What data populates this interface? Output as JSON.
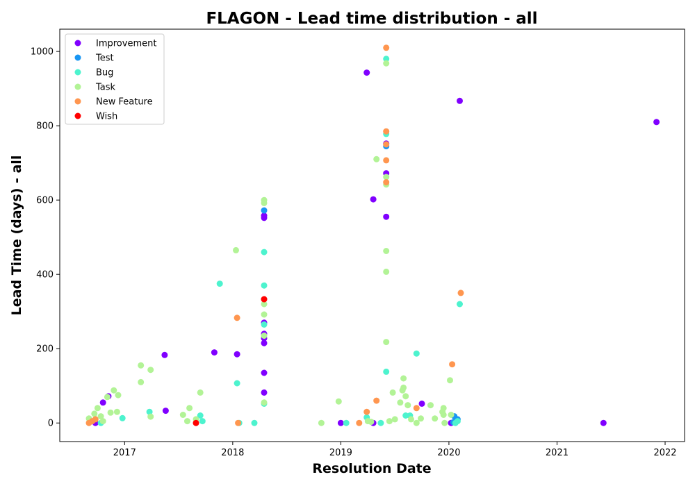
{
  "chart_data": {
    "type": "scatter",
    "title": "FLAGON - Lead time distribution - all",
    "xlabel": "Resolution Date",
    "ylabel": "Lead Time (days) - all",
    "xlim": [
      2016.4,
      2022.18
    ],
    "ylim": [
      -50,
      1060
    ],
    "x_ticks": [
      2017,
      2018,
      2019,
      2020,
      2021,
      2022
    ],
    "y_ticks": [
      0,
      200,
      400,
      600,
      800,
      1000
    ],
    "grid": false,
    "legend_position": "top-left",
    "series": [
      {
        "name": "Improvement",
        "color": "#8000ff",
        "points": [
          [
            2016.73,
            0
          ],
          [
            2016.8,
            55
          ],
          [
            2016.85,
            72
          ],
          [
            2017.37,
            183
          ],
          [
            2017.38,
            33
          ],
          [
            2017.83,
            190
          ],
          [
            2018.04,
            185
          ],
          [
            2018.29,
            552
          ],
          [
            2018.29,
            135
          ],
          [
            2018.29,
            215
          ],
          [
            2018.29,
            228
          ],
          [
            2018.29,
            240
          ],
          [
            2018.29,
            270
          ],
          [
            2018.29,
            82
          ],
          [
            2018.29,
            558
          ],
          [
            2019.0,
            0
          ],
          [
            2019.24,
            943
          ],
          [
            2019.3,
            0
          ],
          [
            2019.3,
            602
          ],
          [
            2019.42,
            555
          ],
          [
            2019.42,
            672
          ],
          [
            2019.42,
            752
          ],
          [
            2019.75,
            52
          ],
          [
            2020.1,
            867
          ],
          [
            2020.02,
            0
          ],
          [
            2021.43,
            0
          ],
          [
            2021.92,
            810
          ]
        ]
      },
      {
        "name": "Test",
        "color": "#1996f3",
        "points": [
          [
            2018.29,
            572
          ],
          [
            2019.42,
            745
          ],
          [
            2020.05,
            18
          ],
          [
            2020.08,
            10
          ],
          [
            2020.04,
            2
          ]
        ]
      },
      {
        "name": "Bug",
        "color": "#4df3ce",
        "points": [
          [
            2016.78,
            0
          ],
          [
            2016.98,
            13
          ],
          [
            2017.23,
            30
          ],
          [
            2017.7,
            20
          ],
          [
            2017.72,
            5
          ],
          [
            2017.88,
            375
          ],
          [
            2018.04,
            107
          ],
          [
            2018.06,
            0
          ],
          [
            2018.2,
            0
          ],
          [
            2018.29,
            460
          ],
          [
            2018.29,
            370
          ],
          [
            2018.29,
            265
          ],
          [
            2018.29,
            52
          ],
          [
            2019.05,
            0
          ],
          [
            2019.24,
            15
          ],
          [
            2019.37,
            0
          ],
          [
            2019.42,
            980
          ],
          [
            2019.42,
            778
          ],
          [
            2019.42,
            138
          ],
          [
            2019.6,
            20
          ],
          [
            2019.64,
            20
          ],
          [
            2019.7,
            187
          ],
          [
            2020.1,
            320
          ],
          [
            2020.08,
            5
          ],
          [
            2020.06,
            0
          ]
        ]
      },
      {
        "name": "Task",
        "color": "#b2f396",
        "points": [
          [
            2016.67,
            12
          ],
          [
            2016.72,
            25
          ],
          [
            2016.75,
            40
          ],
          [
            2016.78,
            18
          ],
          [
            2016.8,
            5
          ],
          [
            2016.84,
            70
          ],
          [
            2016.87,
            28
          ],
          [
            2016.9,
            88
          ],
          [
            2016.93,
            30
          ],
          [
            2016.94,
            75
          ],
          [
            2017.15,
            155
          ],
          [
            2017.15,
            110
          ],
          [
            2017.24,
            143
          ],
          [
            2017.24,
            17
          ],
          [
            2017.54,
            22
          ],
          [
            2017.58,
            5
          ],
          [
            2017.6,
            40
          ],
          [
            2017.66,
            10
          ],
          [
            2017.7,
            82
          ],
          [
            2018.03,
            465
          ],
          [
            2018.29,
            600
          ],
          [
            2018.29,
            592
          ],
          [
            2018.29,
            320
          ],
          [
            2018.29,
            292
          ],
          [
            2018.29,
            235
          ],
          [
            2018.29,
            55
          ],
          [
            2018.82,
            0
          ],
          [
            2018.98,
            58
          ],
          [
            2019.25,
            5
          ],
          [
            2019.28,
            3
          ],
          [
            2019.33,
            710
          ],
          [
            2019.42,
            968
          ],
          [
            2019.42,
            662
          ],
          [
            2019.42,
            642
          ],
          [
            2019.42,
            463
          ],
          [
            2019.42,
            407
          ],
          [
            2019.42,
            218
          ],
          [
            2019.45,
            5
          ],
          [
            2019.48,
            82
          ],
          [
            2019.5,
            10
          ],
          [
            2019.55,
            55
          ],
          [
            2019.57,
            88
          ],
          [
            2019.58,
            95
          ],
          [
            2019.58,
            120
          ],
          [
            2019.6,
            72
          ],
          [
            2019.62,
            48
          ],
          [
            2019.65,
            10
          ],
          [
            2019.7,
            0
          ],
          [
            2019.74,
            12
          ],
          [
            2019.83,
            48
          ],
          [
            2019.87,
            12
          ],
          [
            2019.95,
            40
          ],
          [
            2019.94,
            30
          ],
          [
            2019.95,
            22
          ],
          [
            2019.96,
            0
          ],
          [
            2020.01,
            115
          ],
          [
            2020.02,
            22
          ]
        ]
      },
      {
        "name": "New Feature",
        "color": "#ff964f",
        "points": [
          [
            2016.67,
            0
          ],
          [
            2016.7,
            5
          ],
          [
            2016.73,
            10
          ],
          [
            2018.04,
            283
          ],
          [
            2018.05,
            0
          ],
          [
            2018.29,
            333
          ],
          [
            2019.17,
            0
          ],
          [
            2019.24,
            30
          ],
          [
            2019.33,
            60
          ],
          [
            2019.42,
            1010
          ],
          [
            2019.42,
            785
          ],
          [
            2019.42,
            750
          ],
          [
            2019.42,
            707
          ],
          [
            2019.42,
            648
          ],
          [
            2019.7,
            40
          ],
          [
            2020.03,
            158
          ],
          [
            2020.11,
            350
          ]
        ]
      },
      {
        "name": "Wish",
        "color": "#ff0000",
        "points": [
          [
            2017.66,
            0
          ],
          [
            2018.29,
            333
          ]
        ]
      }
    ]
  }
}
